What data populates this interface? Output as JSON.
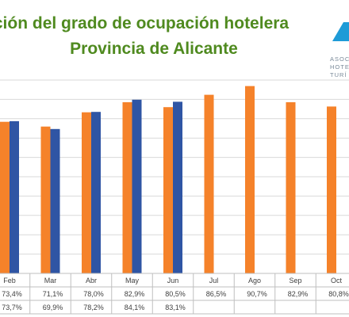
{
  "header": {
    "title_line1": "ción del grado de ocupación hotelera",
    "title_line2": "Provincia de Alicante",
    "logo_lines": [
      "ASOC",
      "HOTE",
      "TURÍ"
    ]
  },
  "colors": {
    "series1": "#F5822A",
    "series2": "#2F55A4",
    "title": "#4F8A1F",
    "logo": "#1E9BD7"
  },
  "chart_data": {
    "type": "bar",
    "categories": [
      "Feb",
      "Mar",
      "Abr",
      "May",
      "Jun",
      "Jul",
      "Ago",
      "Sep",
      "Oct"
    ],
    "series": [
      {
        "values": [
          73.4,
          71.1,
          78.0,
          82.9,
          80.5,
          86.5,
          90.7,
          82.9,
          80.8
        ],
        "labels": [
          "73,4%",
          "71,1%",
          "78,0%",
          "82,9%",
          "80,5%",
          "86,5%",
          "90,7%",
          "82,9%",
          "80,8%"
        ]
      },
      {
        "values": [
          73.7,
          69.9,
          78.2,
          84.1,
          83.1,
          null,
          null,
          null,
          null
        ],
        "labels": [
          "73,7%",
          "69,9%",
          "78,2%",
          "84,1%",
          "83,1%",
          "",
          "",
          "",
          ""
        ]
      }
    ],
    "grid": true,
    "legend": "none"
  }
}
